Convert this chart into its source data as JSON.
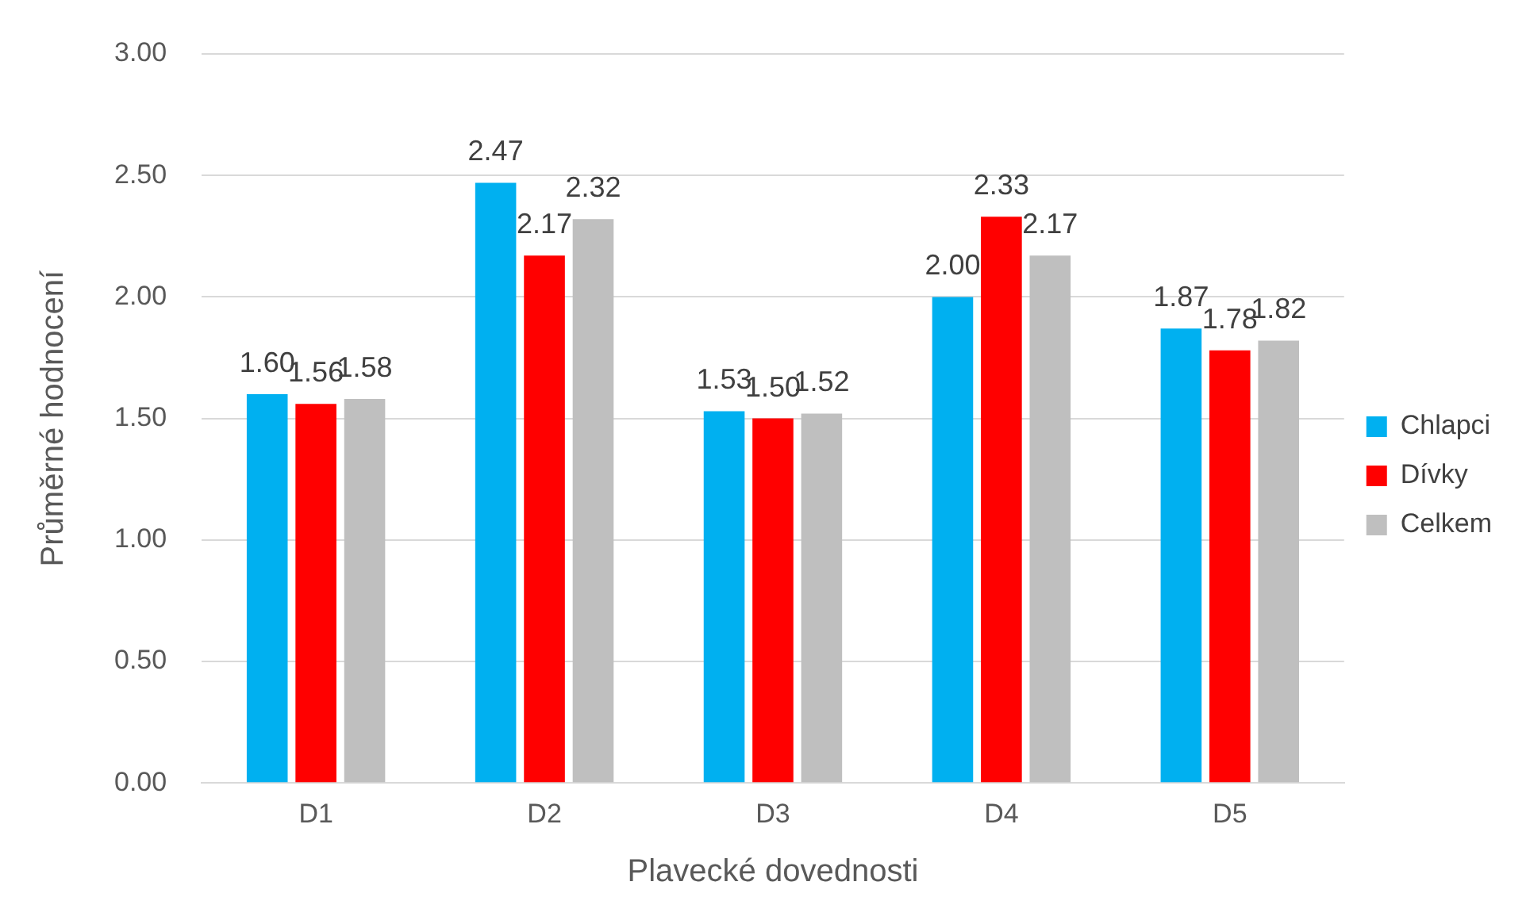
{
  "chart_data": {
    "type": "bar",
    "xlabel": "Plavecké dovednosti",
    "ylabel": "Průměrné hodnocení",
    "categories": [
      "D1",
      "D2",
      "D3",
      "D4",
      "D5"
    ],
    "series": [
      {
        "name": "Chlapci",
        "color": "#00b0f0",
        "values": [
          1.6,
          2.47,
          1.53,
          2.0,
          1.87
        ],
        "value_labels": [
          "1.60",
          "2.47",
          "1.53",
          "2.00",
          "1.87"
        ]
      },
      {
        "name": "Dívky",
        "color": "#ff0000",
        "values": [
          1.56,
          2.17,
          1.5,
          2.33,
          1.78
        ],
        "value_labels": [
          "1.56",
          "2.17",
          "1.50",
          "2.33",
          "1.78"
        ]
      },
      {
        "name": "Celkem",
        "color": "#bfbfbf",
        "values": [
          1.58,
          2.32,
          1.52,
          2.17,
          1.82
        ],
        "value_labels": [
          "1.58",
          "2.32",
          "1.52",
          "2.17",
          "1.82"
        ]
      }
    ],
    "ylim": [
      0,
      3
    ],
    "yticks": [
      {
        "value": 0,
        "label": "0.00"
      },
      {
        "value": 0.5,
        "label": "0.50"
      },
      {
        "value": 1,
        "label": "1.00"
      },
      {
        "value": 1.5,
        "label": "1.50"
      },
      {
        "value": 2,
        "label": "2.00"
      },
      {
        "value": 2.5,
        "label": "2.50"
      },
      {
        "value": 3,
        "label": "3.00"
      }
    ],
    "grid": "y",
    "legend": "right"
  }
}
